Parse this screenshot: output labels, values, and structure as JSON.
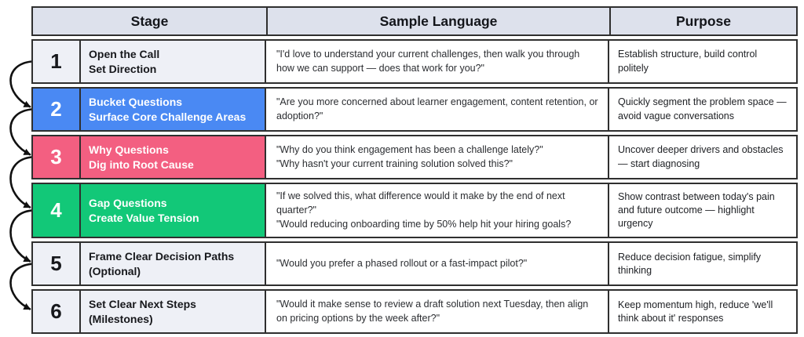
{
  "colors": {
    "blue": "#4a89f3",
    "pink": "#f35f81",
    "green": "#12c878",
    "neutral_fill": "#eef0f6",
    "header_fill": "#dde1ec",
    "border": "#2f2f2f",
    "arrow": "#111111"
  },
  "header": {
    "stage": "Stage",
    "sample_language": "Sample Language",
    "purpose": "Purpose"
  },
  "rows": [
    {
      "number": "1",
      "variant": "neutral",
      "stage_title": "Open the Call",
      "stage_subtitle": "Set Direction",
      "sample_lines": [
        "\"I'd love to understand your current challenges, then walk you through how we can support — does that work for you?\""
      ],
      "purpose": "Establish structure, build control politely"
    },
    {
      "number": "2",
      "variant": "blue",
      "stage_title": "Bucket Questions",
      "stage_subtitle": "Surface Core Challenge Areas",
      "sample_lines": [
        "\"Are you more concerned about learner engagement, content retention, or adoption?\""
      ],
      "purpose": "Quickly segment the problem space — avoid vague conversations"
    },
    {
      "number": "3",
      "variant": "pink",
      "stage_title": "Why Questions",
      "stage_subtitle": "Dig into Root Cause",
      "sample_lines": [
        "\"Why do you think engagement has been a challenge lately?\"",
        "\"Why hasn't your current training solution solved this?\""
      ],
      "purpose": "Uncover deeper drivers and obstacles — start diagnosing"
    },
    {
      "number": "4",
      "variant": "green",
      "stage_title": "Gap Questions",
      "stage_subtitle": "Create Value Tension",
      "sample_lines": [
        "\"If we solved this, what difference would it make by the end of next quarter?\"",
        "\"Would reducing onboarding time by 50% help hit your hiring goals?"
      ],
      "purpose": "Show contrast between today's pain and future outcome — highlight urgency"
    },
    {
      "number": "5",
      "variant": "neutral",
      "stage_title": "Frame Clear Decision Paths",
      "stage_subtitle": "(Optional)",
      "sample_lines": [
        "\"Would you prefer a phased rollout or a fast-impact pilot?\""
      ],
      "purpose": "Reduce decision fatigue, simplify thinking"
    },
    {
      "number": "6",
      "variant": "neutral",
      "stage_title": "Set Clear Next Steps",
      "stage_subtitle": "(Milestones)",
      "sample_lines": [
        "\"Would it make sense to review a draft solution next Tuesday, then align on pricing options by the week after?\""
      ],
      "purpose": "Keep momentum high, reduce 'we'll think about it' responses"
    }
  ]
}
